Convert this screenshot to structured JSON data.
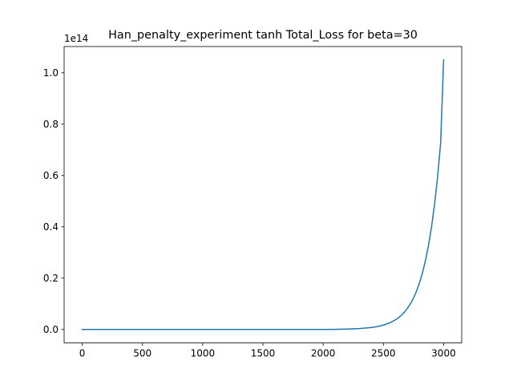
{
  "chart_data": {
    "type": "line",
    "title": "Han_penalty_experiment tanh Total_Loss for beta=30",
    "xlabel": "",
    "ylabel": "",
    "y_offset_label": "1e14",
    "xlim": [
      -150,
      3150
    ],
    "ylim": [
      -0.0525,
      1.1025
    ],
    "x_ticks": [
      0,
      500,
      1000,
      1500,
      2000,
      2500,
      3000
    ],
    "x_tick_labels": [
      "0",
      "500",
      "1000",
      "1500",
      "2000",
      "2500",
      "3000"
    ],
    "y_ticks": [
      0.0,
      0.2,
      0.4,
      0.6,
      0.8,
      1.0
    ],
    "y_tick_labels": [
      "0.0",
      "0.2",
      "0.4",
      "0.6",
      "0.8",
      "1.0"
    ],
    "grid": false,
    "series": [
      {
        "color": "#1f77b4",
        "x": [
          0,
          500,
          1000,
          1500,
          2000,
          2100,
          2200,
          2300,
          2400,
          2450,
          2500,
          2550,
          2600,
          2625,
          2650,
          2675,
          2700,
          2725,
          2750,
          2775,
          2800,
          2825,
          2850,
          2875,
          2900,
          2925,
          2950,
          2975,
          3000
        ],
        "y": [
          0.0,
          0.0,
          0.0,
          0.0,
          0.0,
          0.0007,
          0.0016,
          0.0035,
          0.0077,
          0.0114,
          0.017,
          0.0252,
          0.0375,
          0.0457,
          0.0557,
          0.0679,
          0.0827,
          0.1007,
          0.1227,
          0.1495,
          0.1822,
          0.2219,
          0.2704,
          0.3294,
          0.4013,
          0.4889,
          0.5957,
          0.7257,
          1.05
        ]
      }
    ]
  }
}
